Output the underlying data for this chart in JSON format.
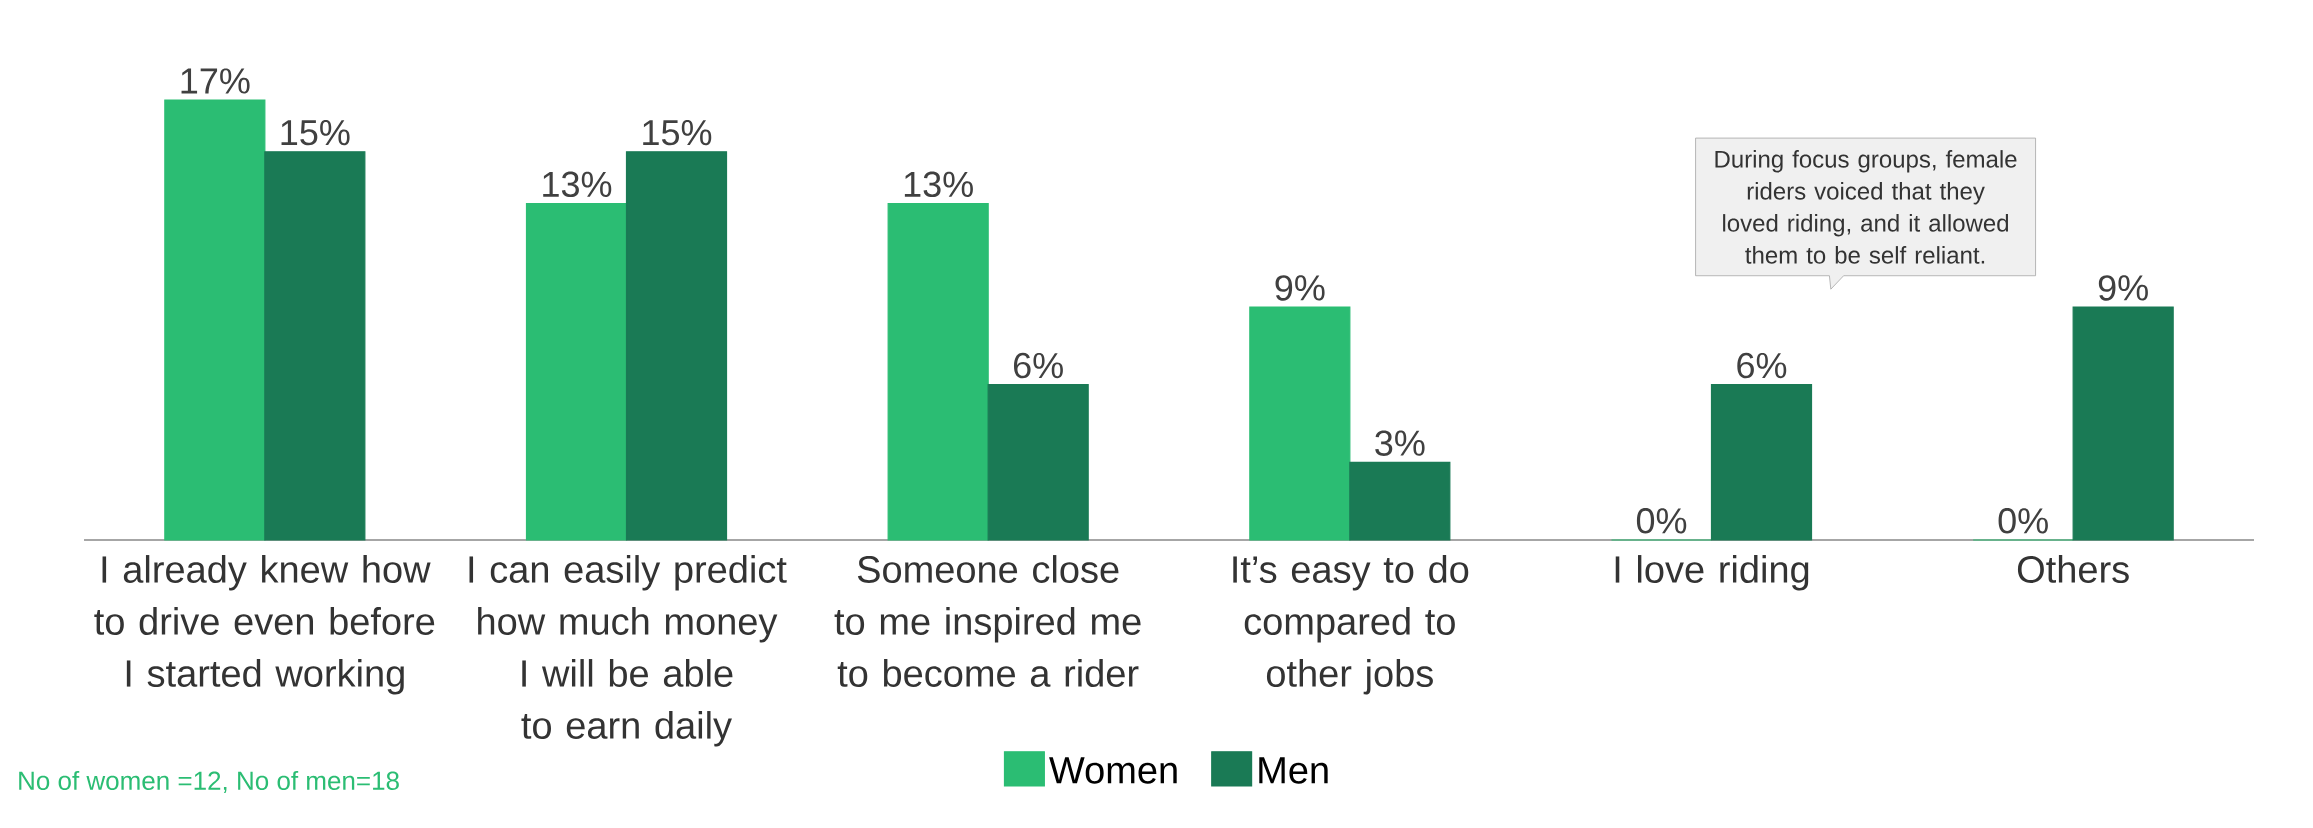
{
  "chart_data": {
    "type": "bar",
    "categories": [
      "I already knew how to drive even before I started working",
      "I can easily predict how much money I will be able to earn daily",
      "Someone close to me inspired me to become a rider",
      "It’s easy to do compared to other jobs",
      "I love riding",
      "Others"
    ],
    "series": [
      {
        "name": "Women",
        "color": "#2bbd73",
        "values": [
          17,
          13,
          13,
          9,
          0,
          0
        ],
        "value_labels": [
          "17%",
          "13%",
          "13%",
          "9%",
          "0%",
          "0%"
        ]
      },
      {
        "name": "Men",
        "color": "#1a7a55",
        "values": [
          15,
          15,
          6,
          3,
          6,
          9
        ],
        "value_labels": [
          "15%",
          "15%",
          "6%",
          "3%",
          "6%",
          "9%"
        ]
      }
    ],
    "legend": "bottom",
    "annotations": [
      "During focus groups, female riders voiced that they loved riding, and it allowed them to be self reliant.",
      "No of women =12, No of men=18"
    ]
  }
}
